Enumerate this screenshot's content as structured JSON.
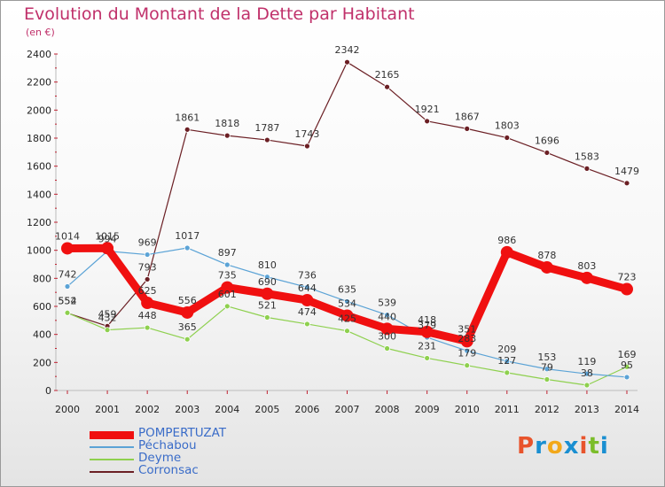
{
  "header": {
    "title": "Evolution du Montant de la Dette par Habitant",
    "subtitle": "(en €)"
  },
  "logo": {
    "letters": [
      "P",
      "r",
      "o",
      "x",
      "i",
      "t",
      "i"
    ],
    "colors": [
      "#e8542c",
      "#1a8fd1",
      "#f2a81a",
      "#1a8fd1",
      "#e8542c",
      "#7bbd2a",
      "#1a8fd1"
    ]
  },
  "chart_data": {
    "type": "line",
    "categories": [
      "2000",
      "2001",
      "2002",
      "2003",
      "2004",
      "2005",
      "2006",
      "2007",
      "2008",
      "2009",
      "2010",
      "2011",
      "2012",
      "2013",
      "2014"
    ],
    "ylim": [
      0,
      2400
    ],
    "yticks": [
      0,
      200,
      400,
      600,
      800,
      1000,
      1200,
      1400,
      1600,
      1800,
      2000,
      2200,
      2400
    ],
    "grid": false,
    "legend_position": "bottom-left",
    "series": [
      {
        "name": "Corronsac",
        "color": "#6b1f24",
        "width": 1.2,
        "values": [
          552,
          459,
          793,
          1861,
          1818,
          1787,
          1743,
          2342,
          2165,
          1921,
          1867,
          1803,
          1696,
          1583,
          1479
        ]
      },
      {
        "name": "Deyme",
        "color": "#8ed04e",
        "width": 1.2,
        "values": [
          554,
          432,
          448,
          365,
          601,
          521,
          474,
          425,
          300,
          231,
          179,
          127,
          79,
          38,
          169
        ]
      },
      {
        "name": "Péchabou",
        "color": "#5ba3d6",
        "width": 1.2,
        "values": [
          742,
          994,
          969,
          1017,
          897,
          810,
          736,
          635,
          539,
          379,
          283,
          209,
          153,
          119,
          95
        ]
      },
      {
        "name": "POMPERTUZAT",
        "color": "#f01010",
        "width": 9,
        "values": [
          1014,
          1015,
          625,
          556,
          735,
          690,
          644,
          534,
          440,
          418,
          351,
          986,
          878,
          803,
          723
        ]
      }
    ],
    "legend_order": [
      "POMPERTUZAT",
      "Péchabou",
      "Deyme",
      "Corronsac"
    ],
    "legend_label_colors": {
      "POMPERTUZAT": "#3a6cc8",
      "Péchabou": "#3a6cc8",
      "Deyme": "#3a6cc8",
      "Corronsac": "#3a6cc8"
    }
  }
}
